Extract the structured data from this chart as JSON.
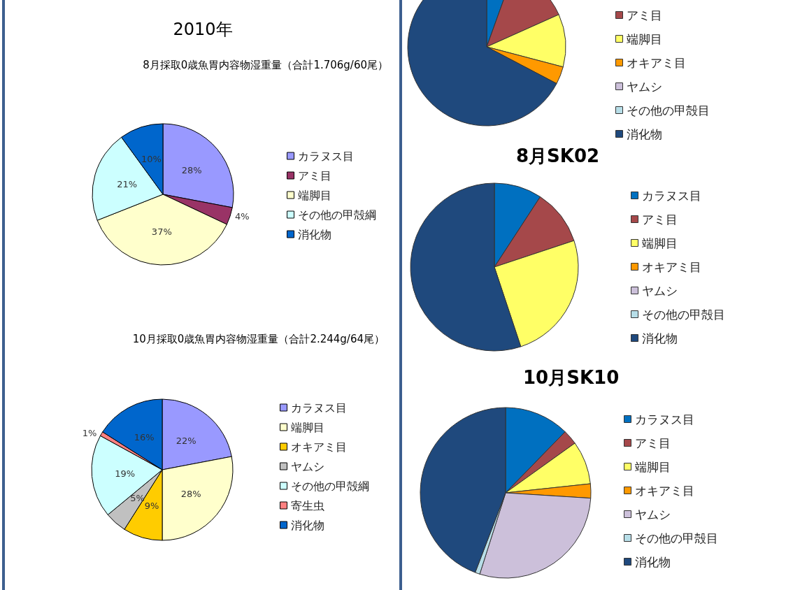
{
  "chart_data": [
    {
      "type": "pie",
      "title": "2010年",
      "subtitle": "8月採取0歳魚胃内容物湿重量（合計1.706g/60尾）",
      "legend": "right",
      "categories": [
        "カラヌス目",
        "アミ目",
        "端脚目",
        "その他の甲殻綱",
        "消化物"
      ],
      "values": [
        28,
        4,
        37,
        21,
        10
      ],
      "value_labels": [
        "28%",
        "4%",
        "37%",
        "21%",
        "10%"
      ],
      "colors": [
        "#9999ff",
        "#993366",
        "#ffffcc",
        "#ccffff",
        "#0066cc"
      ]
    },
    {
      "type": "pie",
      "title": "10月採取0歳魚胃内容物湿重量（合計2.244g/64尾）",
      "legend": "right",
      "categories": [
        "カラヌス目",
        "端脚目",
        "オキアミ目",
        "ヤムシ",
        "その他の甲殻綱",
        "寄生虫",
        "消化物"
      ],
      "values": [
        22,
        28,
        9,
        5,
        19,
        1,
        16
      ],
      "value_labels": [
        "22%",
        "28%",
        "9%",
        "5%",
        "19%",
        "1%",
        "16%"
      ],
      "colors": [
        "#9999ff",
        "#ffffcc",
        "#ffcc00",
        "#c0c0c0",
        "#ccffff",
        "#ff8080",
        "#0066cc"
      ]
    },
    {
      "type": "pie",
      "legend": "right",
      "categories": [
        null,
        "アミ目",
        "端脚目",
        "オキアミ目",
        "ヤムシ",
        "その他の甲殻目",
        "消化物"
      ],
      "values": [
        5.5,
        12.8,
        10.8,
        3.6,
        0,
        0,
        67.3
      ],
      "colors": [
        "#0070c0",
        "#a5484a",
        "#ffff66",
        "#ff9900",
        "#ccc0da",
        "#b7dee8",
        "#1f497d"
      ]
    },
    {
      "type": "pie",
      "title": "8月SK02",
      "legend": "right",
      "categories": [
        "カラヌス目",
        "アミ目",
        "端脚目",
        "オキアミ目",
        "ヤムシ",
        "その他の甲殻目",
        "消化物"
      ],
      "values": [
        9.2,
        10.7,
        25.0,
        0,
        0,
        0,
        55.1
      ],
      "colors": [
        "#0070c0",
        "#a5484a",
        "#ffff66",
        "#ff9900",
        "#ccc0da",
        "#b7dee8",
        "#1f497d"
      ]
    },
    {
      "type": "pie",
      "title": "10月SK10",
      "legend": "right",
      "categories": [
        "カラヌス目",
        "アミ目",
        "端脚目",
        "オキアミ目",
        "ヤムシ",
        "その他の甲殻目",
        "消化物"
      ],
      "values": [
        12.3,
        2.8,
        8.2,
        2.7,
        28.9,
        0.9,
        44.2
      ],
      "colors": [
        "#0070c0",
        "#a5484a",
        "#ffff66",
        "#ff9900",
        "#ccc0da",
        "#b7dee8",
        "#1f497d"
      ]
    }
  ]
}
